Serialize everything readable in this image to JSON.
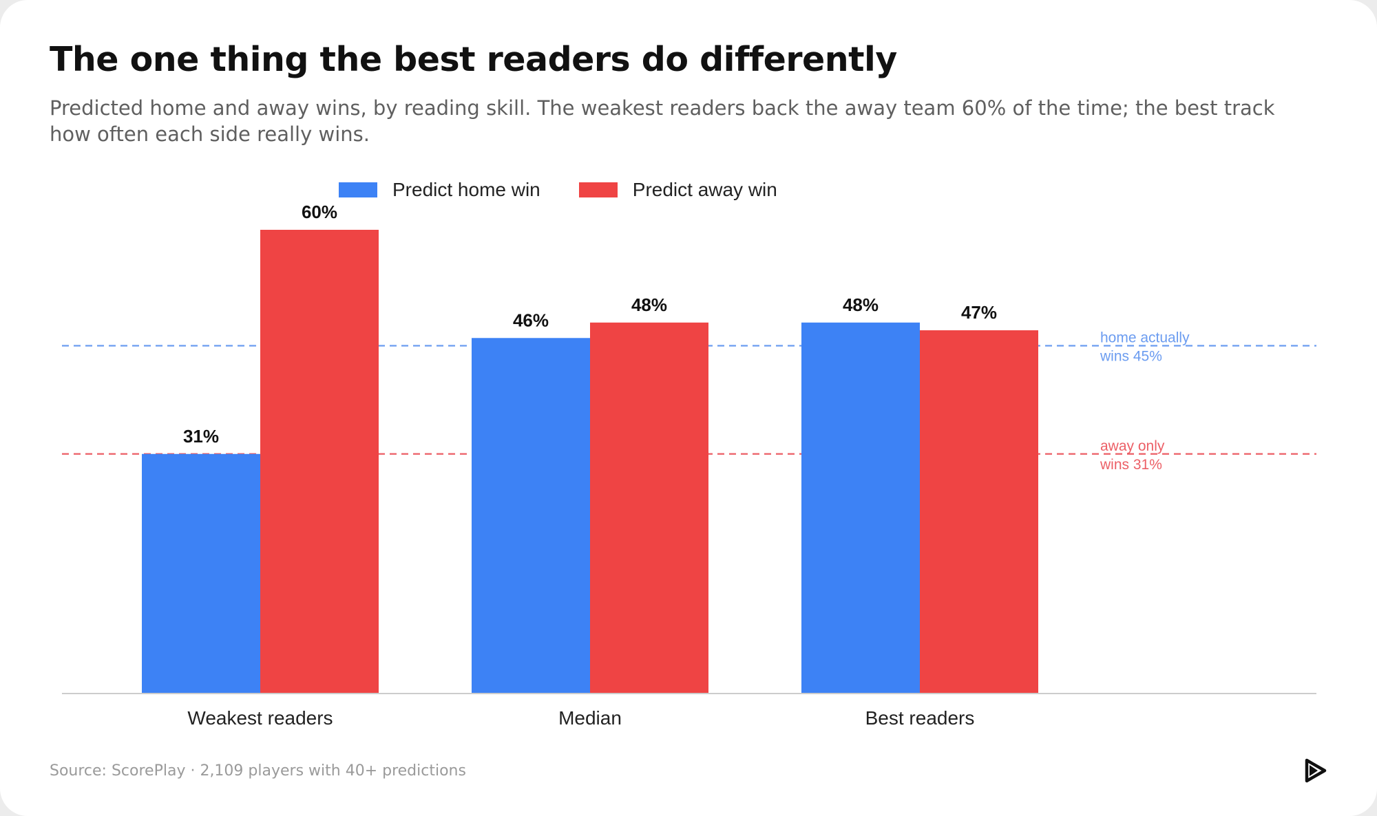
{
  "title": "The one thing the best readers do differently",
  "subtitle": "Predicted home and away wins, by reading skill. The weakest readers back the away team 60% of the time; the best track how often each side really wins.",
  "footer": "Source: ScorePlay · 2,109 players with 40+ predictions",
  "brand_icon": "play-logo-icon",
  "colors": {
    "home": "#3d82f5",
    "away": "#ef4444",
    "home_ref": "#6b9cf0",
    "away_ref": "#ec5f66",
    "axis": "#cccccc"
  },
  "chart_data": {
    "type": "bar",
    "categories": [
      "Weakest readers",
      "Median",
      "Best readers"
    ],
    "series": [
      {
        "name": "Predict home win",
        "values": [
          31,
          46,
          48
        ],
        "labels": [
          "31%",
          "46%",
          "48%"
        ]
      },
      {
        "name": "Predict away win",
        "values": [
          60,
          48,
          47
        ],
        "labels": [
          "60%",
          "48%",
          "47%"
        ]
      }
    ],
    "ylim": [
      0,
      60
    ],
    "grid": false,
    "legend": "top",
    "reference_lines": [
      {
        "value": 45,
        "label_lines": [
          "home actually",
          "wins 45%"
        ],
        "series": "home"
      },
      {
        "value": 31,
        "label_lines": [
          "away only",
          "wins 31%"
        ],
        "series": "away"
      }
    ]
  }
}
